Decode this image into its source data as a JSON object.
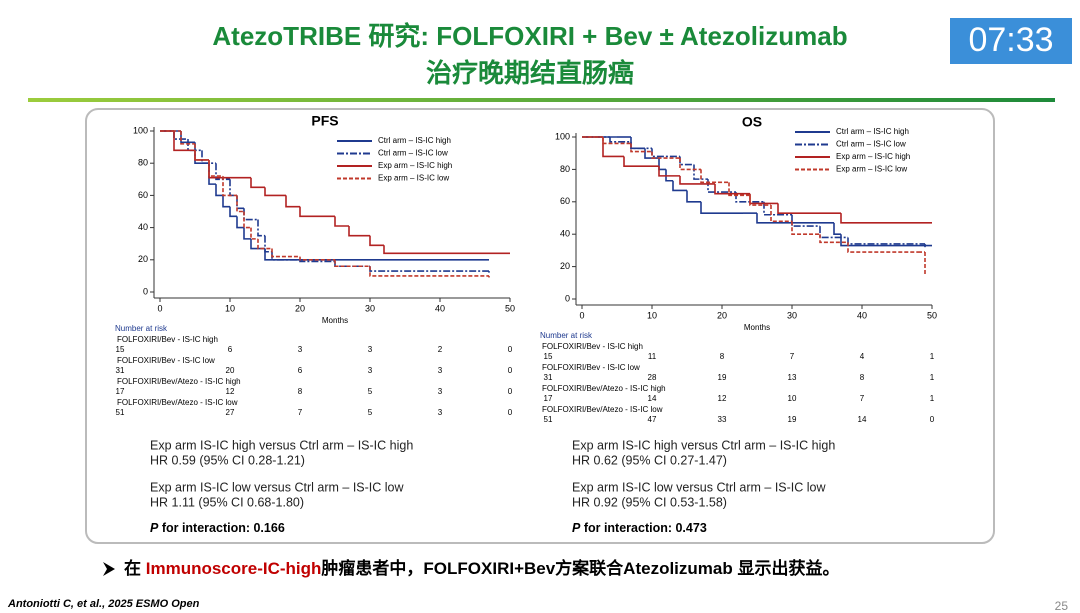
{
  "header": {
    "title_line1": "AtezoTRIBE 研究: FOLFOXIRI + Bev ± Atezolizumab",
    "title_line2": "治疗晚期结直肠癌",
    "timer": "07:33"
  },
  "chart_data": [
    {
      "type": "line",
      "step": true,
      "title": "PFS",
      "x_label": "Months",
      "xlim": [
        0,
        50
      ],
      "xticks": [
        0,
        10,
        20,
        30,
        40,
        50
      ],
      "ylim": [
        0,
        100
      ],
      "yticks": [
        0,
        20,
        40,
        60,
        80,
        100
      ],
      "grid": false,
      "legend": "upper right",
      "series": [
        {
          "name": "Ctrl arm – IS-IC high",
          "color": "#1f3a8f",
          "dash": "solid",
          "x": [
            0,
            3,
            5,
            7,
            8,
            9,
            10,
            11,
            12,
            13,
            15,
            47
          ],
          "values": [
            100,
            93,
            80,
            67,
            60,
            53,
            47,
            40,
            33,
            27,
            20,
            20
          ]
        },
        {
          "name": "Ctrl arm – IS-IC low",
          "color": "#1f3a8f",
          "dash": "dashdot",
          "x": [
            0,
            2,
            4,
            6,
            8,
            10,
            11,
            12,
            14,
            15,
            16,
            20,
            25,
            30,
            47
          ],
          "values": [
            100,
            95,
            88,
            80,
            70,
            60,
            52,
            45,
            35,
            25,
            20,
            19,
            16,
            13,
            12
          ]
        },
        {
          "name": "Exp arm – IS-IC high",
          "color": "#b22222",
          "dash": "solid",
          "x": [
            0,
            2,
            5,
            7,
            13,
            15,
            18,
            20,
            25,
            27,
            30,
            32,
            50
          ],
          "values": [
            100,
            88,
            82,
            71,
            65,
            60,
            53,
            47,
            41,
            35,
            29,
            24,
            24
          ]
        },
        {
          "name": "Exp arm – IS-IC low",
          "color": "#c0392b",
          "dash": "dash",
          "x": [
            0,
            3,
            5,
            7,
            9,
            11,
            12,
            13,
            14,
            16,
            20,
            25,
            30,
            47
          ],
          "values": [
            100,
            92,
            82,
            72,
            60,
            50,
            40,
            33,
            27,
            22,
            20,
            16,
            10,
            9
          ]
        }
      ],
      "risk_table": {
        "title": "Number at risk",
        "rows": [
          {
            "label": "FOLFOXIRI/Bev - IS-IC high",
            "values": [
              15,
              6,
              3,
              3,
              2,
              0
            ]
          },
          {
            "label": "FOLFOXIRI/Bev - IS-IC low",
            "values": [
              31,
              20,
              6,
              3,
              3,
              0
            ]
          },
          {
            "label": "FOLFOXIRI/Bev/Atezo - IS-IC high",
            "values": [
              17,
              12,
              8,
              5,
              3,
              0
            ]
          },
          {
            "label": "FOLFOXIRI/Bev/Atezo - IS-IC low",
            "values": [
              51,
              27,
              7,
              5,
              3,
              0
            ]
          }
        ]
      },
      "stats": [
        "Exp arm IS-IC high versus Ctrl arm – IS-IC high",
        "HR 0.59 (95% CI 0.28-1.21)",
        "Exp arm IS-IC low versus Ctrl arm – IS-IC low",
        "HR 1.11 (95% CI 0.68-1.80)"
      ],
      "interaction": [
        "P",
        " for interaction: 0.166"
      ]
    },
    {
      "type": "line",
      "step": true,
      "title": "OS",
      "x_label": "Months",
      "xlim": [
        0,
        50
      ],
      "xticks": [
        0,
        10,
        20,
        30,
        40,
        50
      ],
      "ylim": [
        0,
        100
      ],
      "yticks": [
        0,
        20,
        40,
        60,
        80,
        100
      ],
      "grid": false,
      "legend": "upper right",
      "series": [
        {
          "name": "Ctrl arm – IS-IC high",
          "color": "#1f3a8f",
          "dash": "solid",
          "x": [
            0,
            5,
            7,
            9,
            11,
            12,
            13,
            15,
            17,
            23,
            25,
            36,
            37,
            50
          ],
          "values": [
            100,
            100,
            93,
            87,
            80,
            73,
            67,
            60,
            53,
            53,
            47,
            40,
            33,
            33
          ]
        },
        {
          "name": "Ctrl arm – IS-IC low",
          "color": "#1f3a8f",
          "dash": "dashdot",
          "x": [
            0,
            4,
            7,
            10,
            14,
            16,
            18,
            22,
            26,
            30,
            34,
            38,
            49
          ],
          "values": [
            100,
            97,
            93,
            88,
            83,
            74,
            66,
            60,
            52,
            45,
            38,
            34,
            32
          ]
        },
        {
          "name": "Exp arm – IS-IC high",
          "color": "#b22222",
          "dash": "solid",
          "x": [
            0,
            3,
            6,
            11,
            14,
            19,
            24,
            28,
            37,
            50
          ],
          "values": [
            100,
            88,
            82,
            76,
            71,
            65,
            59,
            53,
            47,
            47
          ]
        },
        {
          "name": "Exp arm – IS-IC low",
          "color": "#c0392b",
          "dash": "dash",
          "x": [
            0,
            3,
            7,
            10,
            14,
            17,
            21,
            24,
            27,
            30,
            34,
            38,
            48,
            49
          ],
          "values": [
            100,
            96,
            91,
            87,
            80,
            72,
            64,
            58,
            48,
            40,
            35,
            29,
            29,
            15
          ]
        }
      ],
      "risk_table": {
        "title": "Number at risk",
        "rows": [
          {
            "label": "FOLFOXIRI/Bev - IS-IC high",
            "values": [
              15,
              11,
              8,
              7,
              4,
              1
            ]
          },
          {
            "label": "FOLFOXIRI/Bev - IS-IC low",
            "values": [
              31,
              28,
              19,
              13,
              8,
              1
            ]
          },
          {
            "label": "FOLFOXIRI/Bev/Atezo - IS-IC high",
            "values": [
              17,
              14,
              12,
              10,
              7,
              1
            ]
          },
          {
            "label": "FOLFOXIRI/Bev/Atezo - IS-IC low",
            "values": [
              51,
              47,
              33,
              19,
              14,
              0
            ]
          }
        ]
      },
      "stats": [
        "Exp arm IS-IC high versus Ctrl arm – IS-IC high",
        "HR 0.62 (95% CI 0.27-1.47)",
        "Exp arm IS-IC low versus Ctrl arm – IS-IC low",
        "HR 0.92 (95% CI 0.53-1.58)"
      ],
      "interaction": [
        "P",
        " for interaction: 0.473"
      ]
    }
  ],
  "conclusion": [
    "在 ",
    "Immunoscore-IC-high",
    "肿瘤患者中，FOLFOXIRI+Bev方案联合Atezolizumab 显示出获益。"
  ],
  "footer": {
    "citation": "Antoniotti C, et al., 2025 ESMO Open",
    "page": "25"
  }
}
